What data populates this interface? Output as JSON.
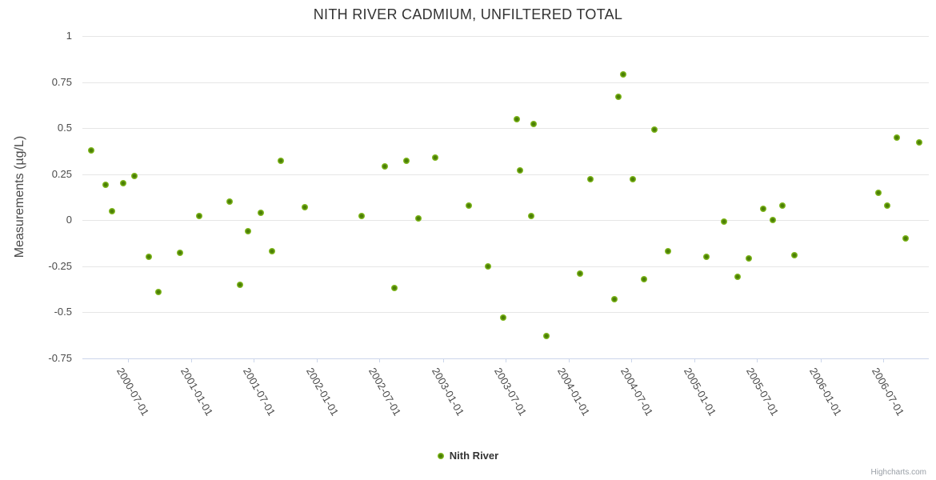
{
  "title": "NITH RIVER CADMIUM, UNFILTERED TOTAL",
  "credits": "Highcharts.com",
  "legend": {
    "series_label": "Nith River"
  },
  "colors": {
    "background": "#ffffff",
    "series": "#7fb71c",
    "series_center": "#4b7f06",
    "grid": "#e6e6e6",
    "axis_line": "#ccd6eb",
    "tick": "#ccd6eb",
    "title_text": "#333333",
    "label_text": "#4a4a4a",
    "credits_text": "#999fa6"
  },
  "chart_data": {
    "type": "scatter",
    "title": "NITH RIVER CADMIUM, UNFILTERED TOTAL",
    "xlabel": "",
    "ylabel": "Measurements (µg/L)",
    "ylim": [
      -0.75,
      1
    ],
    "y_ticks": [
      1,
      0.75,
      0.5,
      0.25,
      0,
      -0.25,
      -0.5,
      -0.75
    ],
    "y_tick_labels": [
      "1",
      "0.75",
      "0.5",
      "0.25",
      "0",
      "-0.25",
      "-0.5",
      "-0.75"
    ],
    "x_ticks": [
      "2000-07-01",
      "2001-01-01",
      "2001-07-01",
      "2002-01-01",
      "2002-07-01",
      "2003-01-01",
      "2003-07-01",
      "2004-01-01",
      "2004-07-01",
      "2005-01-01",
      "2005-07-01",
      "2006-01-01",
      "2006-07-01"
    ],
    "x_range": [
      "2000-02-19",
      "2006-11-10"
    ],
    "grid": true,
    "legend_position": "bottom-center",
    "series": [
      {
        "name": "Nith River",
        "points": [
          {
            "x": "2000-03-16",
            "y": 0.38
          },
          {
            "x": "2000-04-27",
            "y": 0.19
          },
          {
            "x": "2000-05-15",
            "y": 0.05
          },
          {
            "x": "2000-06-17",
            "y": 0.2
          },
          {
            "x": "2000-07-19",
            "y": 0.24
          },
          {
            "x": "2000-08-30",
            "y": -0.2
          },
          {
            "x": "2000-09-27",
            "y": -0.39
          },
          {
            "x": "2000-11-28",
            "y": -0.18
          },
          {
            "x": "2001-01-23",
            "y": 0.02
          },
          {
            "x": "2001-04-22",
            "y": 0.1
          },
          {
            "x": "2001-05-22",
            "y": -0.35
          },
          {
            "x": "2001-06-14",
            "y": -0.06
          },
          {
            "x": "2001-07-21",
            "y": 0.04
          },
          {
            "x": "2001-08-23",
            "y": -0.17
          },
          {
            "x": "2001-09-17",
            "y": 0.32
          },
          {
            "x": "2001-11-26",
            "y": 0.07
          },
          {
            "x": "2002-05-09",
            "y": 0.02
          },
          {
            "x": "2002-07-15",
            "y": 0.29
          },
          {
            "x": "2002-08-12",
            "y": -0.37
          },
          {
            "x": "2002-09-16",
            "y": 0.32
          },
          {
            "x": "2002-10-21",
            "y": 0.01
          },
          {
            "x": "2002-12-09",
            "y": 0.34
          },
          {
            "x": "2003-03-16",
            "y": 0.08
          },
          {
            "x": "2003-05-11",
            "y": -0.25
          },
          {
            "x": "2003-06-24",
            "y": -0.53
          },
          {
            "x": "2003-08-02",
            "y": 0.55
          },
          {
            "x": "2003-08-12",
            "y": 0.27
          },
          {
            "x": "2003-09-13",
            "y": 0.02
          },
          {
            "x": "2003-09-20",
            "y": 0.52
          },
          {
            "x": "2003-10-27",
            "y": -0.63
          },
          {
            "x": "2004-02-02",
            "y": -0.29
          },
          {
            "x": "2004-03-03",
            "y": 0.22
          },
          {
            "x": "2004-05-12",
            "y": -0.43
          },
          {
            "x": "2004-05-23",
            "y": 0.67
          },
          {
            "x": "2004-06-06",
            "y": 0.79
          },
          {
            "x": "2004-07-04",
            "y": 0.22
          },
          {
            "x": "2004-08-05",
            "y": -0.32
          },
          {
            "x": "2004-09-05",
            "y": 0.49
          },
          {
            "x": "2004-10-14",
            "y": -0.17
          },
          {
            "x": "2005-02-03",
            "y": -0.2
          },
          {
            "x": "2005-03-25",
            "y": -0.01
          },
          {
            "x": "2005-05-05",
            "y": -0.31
          },
          {
            "x": "2005-06-05",
            "y": -0.21
          },
          {
            "x": "2005-07-17",
            "y": 0.06
          },
          {
            "x": "2005-08-14",
            "y": 0.0
          },
          {
            "x": "2005-09-11",
            "y": 0.08
          },
          {
            "x": "2005-10-16",
            "y": -0.19
          },
          {
            "x": "2006-06-17",
            "y": 0.15
          },
          {
            "x": "2006-07-12",
            "y": 0.08
          },
          {
            "x": "2006-08-09",
            "y": 0.45
          },
          {
            "x": "2006-09-04",
            "y": -0.1
          },
          {
            "x": "2006-10-12",
            "y": 0.42
          }
        ]
      }
    ]
  }
}
